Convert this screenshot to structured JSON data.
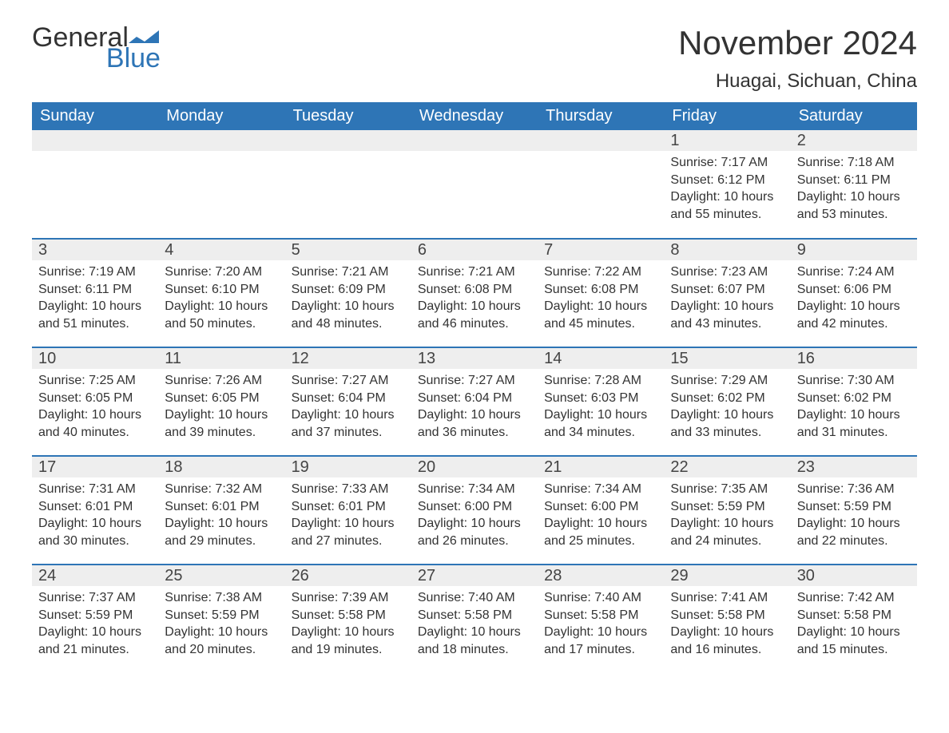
{
  "brand": {
    "name_part1": "General",
    "name_part2": "Blue"
  },
  "title": "November 2024",
  "location": "Huagai, Sichuan, China",
  "colors": {
    "header_bg": "#2e75b6",
    "header_text": "#ffffff",
    "row_stripe": "#eeeeee",
    "row_border": "#2e75b6",
    "body_text": "#333333",
    "background": "#ffffff"
  },
  "typography": {
    "title_fontsize": 42,
    "location_fontsize": 24,
    "dayheader_fontsize": 20,
    "daynum_fontsize": 20,
    "body_fontsize": 16,
    "font_family": "Arial"
  },
  "layout": {
    "columns": 7,
    "rows": 5,
    "start_day_index": 5
  },
  "day_headers": [
    "Sunday",
    "Monday",
    "Tuesday",
    "Wednesday",
    "Thursday",
    "Friday",
    "Saturday"
  ],
  "days": [
    {
      "n": 1,
      "sunrise": "7:17 AM",
      "sunset": "6:12 PM",
      "daylight": "10 hours and 55 minutes."
    },
    {
      "n": 2,
      "sunrise": "7:18 AM",
      "sunset": "6:11 PM",
      "daylight": "10 hours and 53 minutes."
    },
    {
      "n": 3,
      "sunrise": "7:19 AM",
      "sunset": "6:11 PM",
      "daylight": "10 hours and 51 minutes."
    },
    {
      "n": 4,
      "sunrise": "7:20 AM",
      "sunset": "6:10 PM",
      "daylight": "10 hours and 50 minutes."
    },
    {
      "n": 5,
      "sunrise": "7:21 AM",
      "sunset": "6:09 PM",
      "daylight": "10 hours and 48 minutes."
    },
    {
      "n": 6,
      "sunrise": "7:21 AM",
      "sunset": "6:08 PM",
      "daylight": "10 hours and 46 minutes."
    },
    {
      "n": 7,
      "sunrise": "7:22 AM",
      "sunset": "6:08 PM",
      "daylight": "10 hours and 45 minutes."
    },
    {
      "n": 8,
      "sunrise": "7:23 AM",
      "sunset": "6:07 PM",
      "daylight": "10 hours and 43 minutes."
    },
    {
      "n": 9,
      "sunrise": "7:24 AM",
      "sunset": "6:06 PM",
      "daylight": "10 hours and 42 minutes."
    },
    {
      "n": 10,
      "sunrise": "7:25 AM",
      "sunset": "6:05 PM",
      "daylight": "10 hours and 40 minutes."
    },
    {
      "n": 11,
      "sunrise": "7:26 AM",
      "sunset": "6:05 PM",
      "daylight": "10 hours and 39 minutes."
    },
    {
      "n": 12,
      "sunrise": "7:27 AM",
      "sunset": "6:04 PM",
      "daylight": "10 hours and 37 minutes."
    },
    {
      "n": 13,
      "sunrise": "7:27 AM",
      "sunset": "6:04 PM",
      "daylight": "10 hours and 36 minutes."
    },
    {
      "n": 14,
      "sunrise": "7:28 AM",
      "sunset": "6:03 PM",
      "daylight": "10 hours and 34 minutes."
    },
    {
      "n": 15,
      "sunrise": "7:29 AM",
      "sunset": "6:02 PM",
      "daylight": "10 hours and 33 minutes."
    },
    {
      "n": 16,
      "sunrise": "7:30 AM",
      "sunset": "6:02 PM",
      "daylight": "10 hours and 31 minutes."
    },
    {
      "n": 17,
      "sunrise": "7:31 AM",
      "sunset": "6:01 PM",
      "daylight": "10 hours and 30 minutes."
    },
    {
      "n": 18,
      "sunrise": "7:32 AM",
      "sunset": "6:01 PM",
      "daylight": "10 hours and 29 minutes."
    },
    {
      "n": 19,
      "sunrise": "7:33 AM",
      "sunset": "6:01 PM",
      "daylight": "10 hours and 27 minutes."
    },
    {
      "n": 20,
      "sunrise": "7:34 AM",
      "sunset": "6:00 PM",
      "daylight": "10 hours and 26 minutes."
    },
    {
      "n": 21,
      "sunrise": "7:34 AM",
      "sunset": "6:00 PM",
      "daylight": "10 hours and 25 minutes."
    },
    {
      "n": 22,
      "sunrise": "7:35 AM",
      "sunset": "5:59 PM",
      "daylight": "10 hours and 24 minutes."
    },
    {
      "n": 23,
      "sunrise": "7:36 AM",
      "sunset": "5:59 PM",
      "daylight": "10 hours and 22 minutes."
    },
    {
      "n": 24,
      "sunrise": "7:37 AM",
      "sunset": "5:59 PM",
      "daylight": "10 hours and 21 minutes."
    },
    {
      "n": 25,
      "sunrise": "7:38 AM",
      "sunset": "5:59 PM",
      "daylight": "10 hours and 20 minutes."
    },
    {
      "n": 26,
      "sunrise": "7:39 AM",
      "sunset": "5:58 PM",
      "daylight": "10 hours and 19 minutes."
    },
    {
      "n": 27,
      "sunrise": "7:40 AM",
      "sunset": "5:58 PM",
      "daylight": "10 hours and 18 minutes."
    },
    {
      "n": 28,
      "sunrise": "7:40 AM",
      "sunset": "5:58 PM",
      "daylight": "10 hours and 17 minutes."
    },
    {
      "n": 29,
      "sunrise": "7:41 AM",
      "sunset": "5:58 PM",
      "daylight": "10 hours and 16 minutes."
    },
    {
      "n": 30,
      "sunrise": "7:42 AM",
      "sunset": "5:58 PM",
      "daylight": "10 hours and 15 minutes."
    }
  ],
  "labels": {
    "sunrise": "Sunrise:",
    "sunset": "Sunset:",
    "daylight": "Daylight:"
  }
}
